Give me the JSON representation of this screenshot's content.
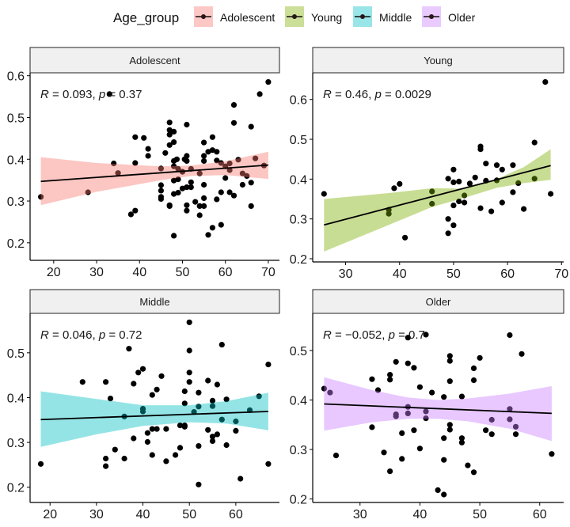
{
  "chart_data": {
    "type": "scatter",
    "legend": {
      "title": "Age_group",
      "position": "top",
      "items": [
        "Adolescent",
        "Young",
        "Middle",
        "Older"
      ]
    },
    "colors": {
      "Adolescent": "#F8766D",
      "Young": "#7CAE00",
      "Middle": "#00BFC4",
      "Older": "#C77CFF"
    },
    "panels": [
      {
        "title": "Adolescent",
        "R": "0.093",
        "p": "0.37",
        "xlim": [
          14.5,
          72.6
        ],
        "ylim": [
          0.158,
          0.607
        ],
        "xticks": [
          20,
          30,
          40,
          50,
          60,
          70
        ],
        "yticks": [
          0.2,
          0.3,
          0.4,
          0.5,
          0.6
        ],
        "fit": {
          "x": [
            17,
            70
          ],
          "y": [
            0.347,
            0.386
          ]
        },
        "ci": {
          "x": [
            17,
            30,
            45,
            52,
            60,
            70
          ],
          "lower": [
            0.29,
            0.322,
            0.35,
            0.36,
            0.362,
            0.353
          ],
          "upper": [
            0.405,
            0.391,
            0.383,
            0.385,
            0.395,
            0.418
          ]
        },
        "points": [
          [
            17,
            0.31
          ],
          [
            28,
            0.321
          ],
          [
            34,
            0.39
          ],
          [
            35,
            0.367
          ],
          [
            33,
            0.556
          ],
          [
            38,
            0.268
          ],
          [
            39,
            0.277
          ],
          [
            39,
            0.453
          ],
          [
            39,
            0.391
          ],
          [
            41,
            0.451
          ],
          [
            42,
            0.425
          ],
          [
            42,
            0.408
          ],
          [
            45,
            0.378
          ],
          [
            45,
            0.338
          ],
          [
            45,
            0.325
          ],
          [
            45,
            0.31
          ],
          [
            45,
            0.305
          ],
          [
            46,
            0.415
          ],
          [
            47,
            0.488
          ],
          [
            47,
            0.47
          ],
          [
            47,
            0.459
          ],
          [
            47,
            0.434
          ],
          [
            47,
            0.29
          ],
          [
            47,
            0.288
          ],
          [
            48,
            0.466
          ],
          [
            48,
            0.441
          ],
          [
            48,
            0.396
          ],
          [
            48,
            0.383
          ],
          [
            48,
            0.349
          ],
          [
            48,
            0.317
          ],
          [
            48,
            0.217
          ],
          [
            48.7,
            0.4
          ],
          [
            49,
            0.377
          ],
          [
            49,
            0.352
          ],
          [
            49,
            0.32
          ],
          [
            50,
            0.37
          ],
          [
            50,
            0.33
          ],
          [
            50.5,
            0.4
          ],
          [
            51,
            0.483
          ],
          [
            51,
            0.408
          ],
          [
            51,
            0.396
          ],
          [
            51,
            0.333
          ],
          [
            51,
            0.29
          ],
          [
            51,
            0.277
          ],
          [
            52,
            0.377
          ],
          [
            52,
            0.345
          ],
          [
            52,
            0.333
          ],
          [
            53,
            0.298
          ],
          [
            54,
            0.366
          ],
          [
            54,
            0.288
          ],
          [
            54,
            0.266
          ],
          [
            55,
            0.44
          ],
          [
            55,
            0.408
          ],
          [
            55,
            0.396
          ],
          [
            55,
            0.339
          ],
          [
            55,
            0.307
          ],
          [
            55,
            0.288
          ],
          [
            56,
            0.418
          ],
          [
            56,
            0.219
          ],
          [
            57,
            0.453
          ],
          [
            57,
            0.422
          ],
          [
            57,
            0.236
          ],
          [
            58,
            0.418
          ],
          [
            58,
            0.397
          ],
          [
            58,
            0.304
          ],
          [
            59,
            0.391
          ],
          [
            59,
            0.321
          ],
          [
            59,
            0.243
          ],
          [
            60,
            0.355
          ],
          [
            60,
            0.383
          ],
          [
            61,
            0.39
          ],
          [
            61,
            0.374
          ],
          [
            61,
            0.321
          ],
          [
            62,
            0.53
          ],
          [
            62,
            0.487
          ],
          [
            62,
            0.313
          ],
          [
            63,
            0.399
          ],
          [
            64,
            0.366
          ],
          [
            64,
            0.339
          ],
          [
            65,
            0.36
          ],
          [
            66,
            0.478
          ],
          [
            66,
            0.344
          ],
          [
            66,
            0.288
          ],
          [
            67,
            0.402
          ],
          [
            68,
            0.556
          ],
          [
            69,
            0.385
          ],
          [
            70,
            0.585
          ]
        ]
      },
      {
        "title": "Young",
        "R": "0.46",
        "p": "0.0029",
        "xlim": [
          23.9,
          70.4
        ],
        "ylim": [
          0.192,
          0.667
        ],
        "xticks": [
          30,
          40,
          50,
          60,
          70
        ],
        "yticks": [
          0.2,
          0.3,
          0.4,
          0.5,
          0.6
        ],
        "fit": {
          "x": [
            26,
            68
          ],
          "y": [
            0.285,
            0.434
          ]
        },
        "ci": {
          "x": [
            26,
            38,
            46,
            52,
            58,
            63,
            68
          ],
          "lower": [
            0.218,
            0.285,
            0.33,
            0.353,
            0.378,
            0.39,
            0.398
          ],
          "upper": [
            0.35,
            0.365,
            0.377,
            0.376,
            0.4,
            0.43,
            0.475
          ]
        },
        "points": [
          [
            26,
            0.363
          ],
          [
            38,
            0.323
          ],
          [
            38,
            0.313
          ],
          [
            39,
            0.377
          ],
          [
            40,
            0.388
          ],
          [
            41,
            0.253
          ],
          [
            46,
            0.369
          ],
          [
            46,
            0.338
          ],
          [
            49,
            0.401
          ],
          [
            49,
            0.3
          ],
          [
            49,
            0.264
          ],
          [
            50,
            0.424
          ],
          [
            50,
            0.392
          ],
          [
            50,
            0.334
          ],
          [
            50,
            0.284
          ],
          [
            51,
            0.394
          ],
          [
            51,
            0.344
          ],
          [
            52,
            0.359
          ],
          [
            52,
            0.341
          ],
          [
            53,
            0.389
          ],
          [
            54,
            0.404
          ],
          [
            55,
            0.482
          ],
          [
            55,
            0.475
          ],
          [
            55,
            0.327
          ],
          [
            56,
            0.439
          ],
          [
            56,
            0.396
          ],
          [
            57,
            0.319
          ],
          [
            58,
            0.435
          ],
          [
            58,
            0.397
          ],
          [
            59,
            0.424
          ],
          [
            59,
            0.341
          ],
          [
            61,
            0.435
          ],
          [
            61,
            0.367
          ],
          [
            62,
            0.39
          ],
          [
            63,
            0.325
          ],
          [
            65,
            0.492
          ],
          [
            65,
            0.401
          ],
          [
            67,
            0.644
          ],
          [
            68,
            0.363
          ]
        ]
      },
      {
        "title": "Middle",
        "R": "0.046",
        "p": "0.72",
        "xlim": [
          15.7,
          69.4
        ],
        "ylim": [
          0.166,
          0.588
        ],
        "xticks": [
          20,
          30,
          40,
          50,
          60
        ],
        "yticks": [
          0.2,
          0.3,
          0.4,
          0.5
        ],
        "fit": {
          "x": [
            18,
            67
          ],
          "y": [
            0.351,
            0.369
          ]
        },
        "ci": {
          "x": [
            18,
            30,
            40,
            50,
            58,
            67
          ],
          "lower": [
            0.29,
            0.318,
            0.337,
            0.345,
            0.342,
            0.327
          ],
          "upper": [
            0.414,
            0.397,
            0.383,
            0.383,
            0.392,
            0.411
          ]
        },
        "points": [
          [
            18,
            0.252
          ],
          [
            27,
            0.435
          ],
          [
            32,
            0.435
          ],
          [
            32,
            0.264
          ],
          [
            32,
            0.247
          ],
          [
            33,
            0.398
          ],
          [
            34,
            0.284
          ],
          [
            36,
            0.358
          ],
          [
            36,
            0.264
          ],
          [
            37,
            0.509
          ],
          [
            38,
            0.431
          ],
          [
            38,
            0.309
          ],
          [
            39,
            0.456
          ],
          [
            40,
            0.464
          ],
          [
            40,
            0.375
          ],
          [
            40,
            0.369
          ],
          [
            41,
            0.321
          ],
          [
            41,
            0.301
          ],
          [
            42,
            0.406
          ],
          [
            42,
            0.33
          ],
          [
            42,
            0.272
          ],
          [
            43,
            0.418
          ],
          [
            43,
            0.33
          ],
          [
            44,
            0.448
          ],
          [
            45,
            0.33
          ],
          [
            45,
            0.258
          ],
          [
            47,
            0.272
          ],
          [
            48,
            0.338
          ],
          [
            48,
            0.288
          ],
          [
            49,
            0.414
          ],
          [
            49,
            0.387
          ],
          [
            49,
            0.338
          ],
          [
            49,
            0.335
          ],
          [
            50,
            0.568
          ],
          [
            50,
            0.505
          ],
          [
            50,
            0.456
          ],
          [
            50,
            0.435
          ],
          [
            51,
            0.368
          ],
          [
            52,
            0.411
          ],
          [
            52,
            0.38
          ],
          [
            52,
            0.292
          ],
          [
            52,
            0.206
          ],
          [
            54,
            0.438
          ],
          [
            54,
            0.328
          ],
          [
            55,
            0.393
          ],
          [
            55,
            0.381
          ],
          [
            55,
            0.313
          ],
          [
            55,
            0.303
          ],
          [
            56,
            0.429
          ],
          [
            56,
            0.318
          ],
          [
            57,
            0.518
          ],
          [
            57,
            0.351
          ],
          [
            58,
            0.396
          ],
          [
            58,
            0.294
          ],
          [
            60,
            0.347
          ],
          [
            60,
            0.326
          ],
          [
            61,
            0.219
          ],
          [
            63,
            0.372
          ],
          [
            65,
            0.403
          ],
          [
            67,
            0.474
          ],
          [
            67,
            0.252
          ]
        ]
      },
      {
        "title": "Older",
        "R": "−0.052",
        "p": "0.7",
        "xlim": [
          22.1,
          64.0
        ],
        "ylim": [
          0.193,
          0.575
        ],
        "xticks": [
          30,
          40,
          50,
          60
        ],
        "yticks": [
          0.2,
          0.3,
          0.4,
          0.5
        ],
        "fit": {
          "x": [
            24,
            62
          ],
          "y": [
            0.392,
            0.373
          ]
        },
        "ci": {
          "x": [
            24,
            32,
            38,
            43,
            48,
            55,
            62
          ],
          "lower": [
            0.338,
            0.355,
            0.362,
            0.362,
            0.357,
            0.342,
            0.317
          ],
          "upper": [
            0.446,
            0.42,
            0.405,
            0.4,
            0.403,
            0.413,
            0.428
          ]
        },
        "points": [
          [
            24,
            0.423
          ],
          [
            25,
            0.415
          ],
          [
            26,
            0.288
          ],
          [
            32,
            0.442
          ],
          [
            32,
            0.345
          ],
          [
            33,
            0.42
          ],
          [
            34,
            0.294
          ],
          [
            35,
            0.451
          ],
          [
            35,
            0.441
          ],
          [
            35,
            0.256
          ],
          [
            36,
            0.477
          ],
          [
            36,
            0.371
          ],
          [
            36,
            0.367
          ],
          [
            37,
            0.333
          ],
          [
            37,
            0.281
          ],
          [
            38,
            0.526
          ],
          [
            38,
            0.474
          ],
          [
            38,
            0.386
          ],
          [
            38,
            0.373
          ],
          [
            39,
            0.465
          ],
          [
            39,
            0.339
          ],
          [
            40,
            0.426
          ],
          [
            40,
            0.302
          ],
          [
            41,
            0.532
          ],
          [
            41,
            0.377
          ],
          [
            41,
            0.363
          ],
          [
            42,
            0.415
          ],
          [
            43,
            0.218
          ],
          [
            44,
            0.406
          ],
          [
            44,
            0.323
          ],
          [
            44,
            0.279
          ],
          [
            44,
            0.209
          ],
          [
            45,
            0.489
          ],
          [
            45,
            0.479
          ],
          [
            45,
            0.438
          ],
          [
            45,
            0.35
          ],
          [
            45,
            0.34
          ],
          [
            47,
            0.407
          ],
          [
            47,
            0.323
          ],
          [
            47,
            0.314
          ],
          [
            48,
            0.268
          ],
          [
            49,
            0.464
          ],
          [
            49,
            0.44
          ],
          [
            49,
            0.254
          ],
          [
            50,
            0.485
          ],
          [
            51,
            0.339
          ],
          [
            52,
            0.36
          ],
          [
            52,
            0.331
          ],
          [
            55,
            0.531
          ],
          [
            55,
            0.382
          ],
          [
            55,
            0.361
          ],
          [
            56,
            0.346
          ],
          [
            56,
            0.331
          ],
          [
            57,
            0.493
          ],
          [
            62,
            0.291
          ]
        ]
      }
    ]
  }
}
